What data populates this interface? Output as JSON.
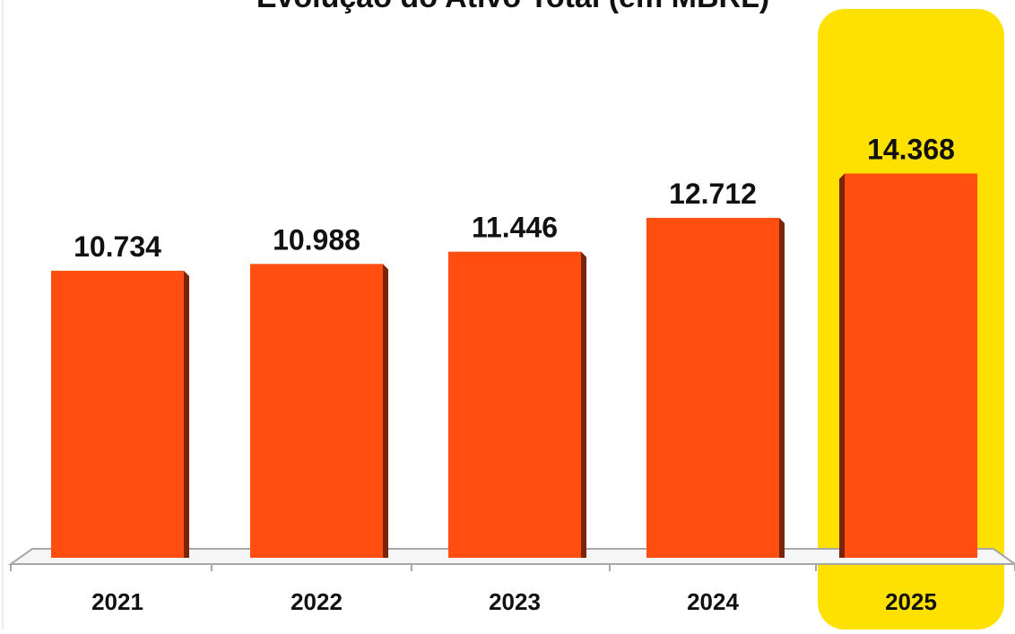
{
  "chart_data": {
    "type": "bar",
    "title": "Evolução do Ativo Total (em MBRL)",
    "categories": [
      "2021",
      "2022",
      "2023",
      "2024",
      "2025"
    ],
    "series": [
      {
        "values": [
          10734,
          10988,
          11446,
          12712,
          14368
        ],
        "labels": [
          "10.734",
          "10.988",
          "11.446",
          "12.712",
          "14.368"
        ]
      }
    ],
    "highlight_category": "2025",
    "grid": false,
    "legend": "none"
  },
  "colors": {
    "bar": "#ff4e10",
    "bar_side": "#7a2408",
    "highlight": "#ffe100",
    "text": "#111111",
    "floor": "#a7a7a7"
  }
}
